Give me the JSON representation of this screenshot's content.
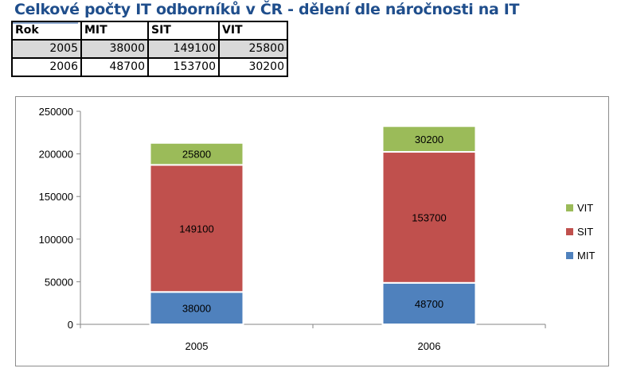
{
  "title": "Celkové počty IT odborníků v ČR - dělení dle náročnosti na IT",
  "table": {
    "headers": [
      "Rok",
      "MIT",
      "SIT",
      "VIT"
    ],
    "rows": [
      [
        "2005",
        "38000",
        "149100",
        "25800"
      ],
      [
        "2006",
        "48700",
        "153700",
        "30200"
      ]
    ]
  },
  "chart_data": {
    "type": "bar",
    "stacked": true,
    "categories": [
      "2005",
      "2006"
    ],
    "series": [
      {
        "name": "MIT",
        "values": [
          38000,
          48700
        ],
        "color": "#4f81bd"
      },
      {
        "name": "SIT",
        "values": [
          149100,
          153700
        ],
        "color": "#c0504d"
      },
      {
        "name": "VIT",
        "values": [
          25800,
          30200
        ],
        "color": "#9bbb59"
      }
    ],
    "ylim": [
      0,
      250000
    ],
    "yticks": [
      "0",
      "50000",
      "100000",
      "150000",
      "200000",
      "250000"
    ],
    "legend_position": "right",
    "grid": false,
    "data_labels": true
  }
}
